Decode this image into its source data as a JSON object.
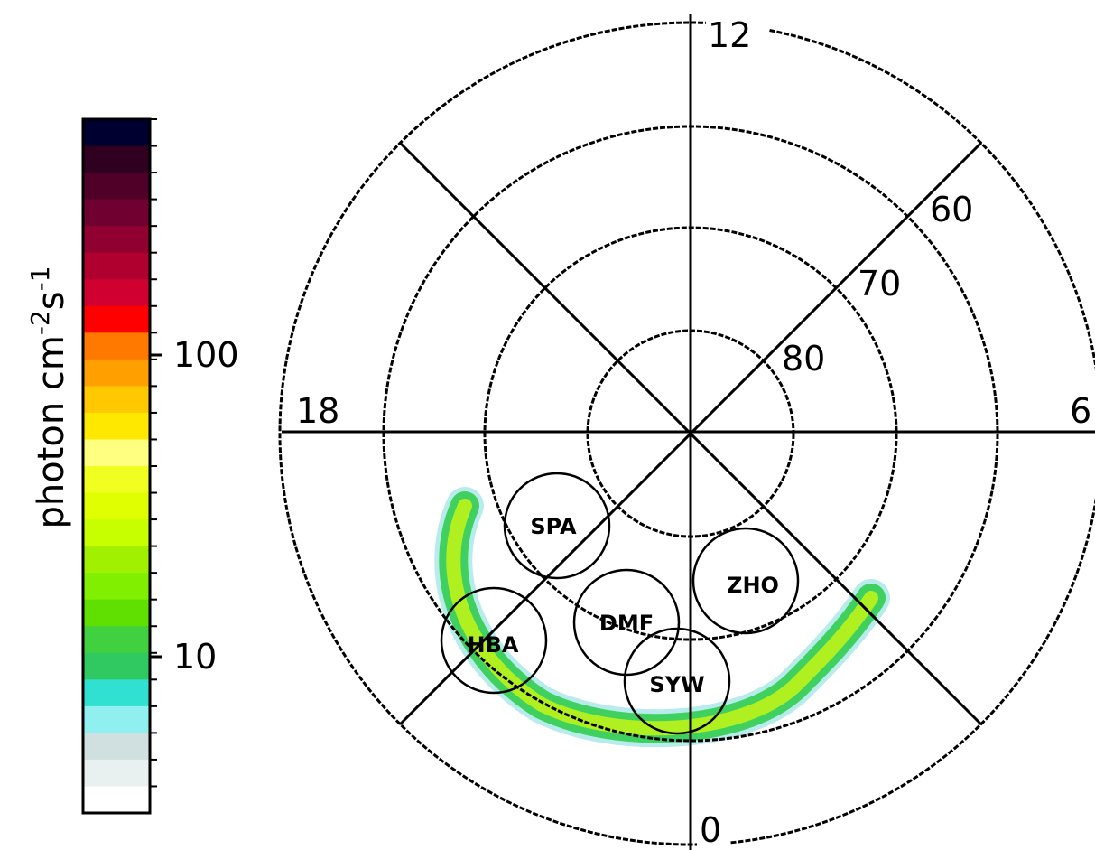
{
  "colorbar": {
    "label": {
      "text": "photon cm",
      "sup1": "-2",
      "text2": "s",
      "sup2": "-1"
    },
    "ticks": [
      "100",
      "10"
    ]
  },
  "polar": {
    "mlt_labels": [
      "12",
      "6",
      "0",
      "18"
    ],
    "lat_labels": [
      "60",
      "70",
      "80"
    ]
  },
  "stations": [
    "SPA",
    "ZHO",
    "DMF",
    "HBA",
    "SYW"
  ]
}
